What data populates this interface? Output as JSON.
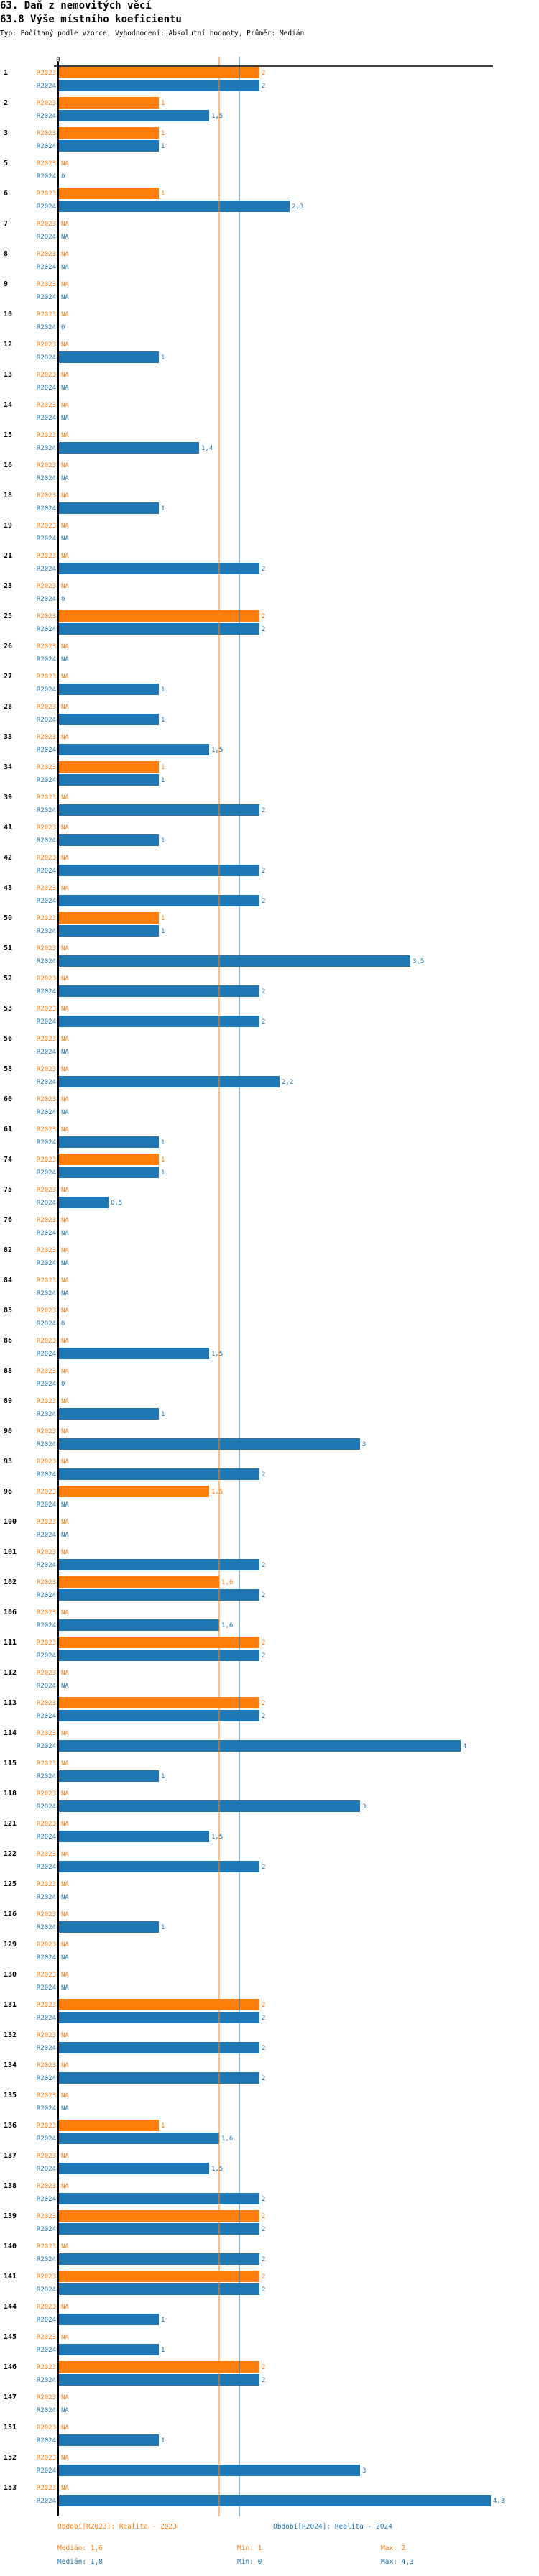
{
  "header": {
    "title": "63. Daň z nemovitých věcí",
    "subtitle": "63.8 Výše místního koeficientu",
    "description": "Typ: Počítaný podle vzorce, Vyhodnocení: Absolutní hodnoty, Průměr: Medián"
  },
  "colors": {
    "r2023": "#ff7f0e",
    "r2024": "#1f77b4",
    "axis": "#000000"
  },
  "chart_data": {
    "type": "bar",
    "orientation": "horizontal",
    "title": "63.8 Výše místního koeficientu",
    "axis_tick_label": "0",
    "xlim": [
      0,
      4.3
    ],
    "series_names": [
      "R2023",
      "R2024"
    ],
    "na_label": "NA",
    "categories": [
      "1",
      "2",
      "3",
      "5",
      "6",
      "7",
      "8",
      "9",
      "10",
      "12",
      "13",
      "14",
      "15",
      "16",
      "18",
      "19",
      "21",
      "23",
      "25",
      "26",
      "27",
      "28",
      "33",
      "34",
      "39",
      "41",
      "42",
      "43",
      "50",
      "51",
      "52",
      "53",
      "56",
      "58",
      "60",
      "61",
      "74",
      "75",
      "76",
      "82",
      "84",
      "85",
      "86",
      "88",
      "89",
      "90",
      "93",
      "96",
      "100",
      "101",
      "102",
      "106",
      "111",
      "112",
      "113",
      "114",
      "115",
      "118",
      "121",
      "122",
      "125",
      "126",
      "129",
      "130",
      "131",
      "132",
      "134",
      "135",
      "136",
      "137",
      "138",
      "139",
      "140",
      "141",
      "144",
      "145",
      "146",
      "147",
      "151",
      "152",
      "153"
    ],
    "series": [
      {
        "name": "R2023",
        "values": [
          2,
          1,
          1,
          null,
          1,
          null,
          null,
          null,
          null,
          null,
          null,
          null,
          null,
          null,
          null,
          null,
          null,
          null,
          2,
          null,
          null,
          null,
          null,
          1,
          null,
          null,
          null,
          null,
          1,
          null,
          null,
          null,
          null,
          null,
          null,
          null,
          1,
          null,
          null,
          null,
          null,
          null,
          null,
          null,
          null,
          null,
          null,
          1.5,
          null,
          null,
          1.6,
          null,
          2,
          null,
          2,
          null,
          null,
          null,
          null,
          null,
          null,
          null,
          null,
          null,
          2,
          null,
          null,
          null,
          1,
          null,
          null,
          2,
          null,
          2,
          null,
          null,
          2,
          null,
          null,
          null,
          null
        ],
        "labels": [
          "2",
          "1",
          "1",
          "NA",
          "1",
          "NA",
          "NA",
          "NA",
          "NA",
          "NA",
          "NA",
          "NA",
          "NA",
          "NA",
          "NA",
          "NA",
          "NA",
          "NA",
          "2",
          "NA",
          "NA",
          "NA",
          "NA",
          "1",
          "NA",
          "NA",
          "NA",
          "NA",
          "1",
          "NA",
          "NA",
          "NA",
          "NA",
          "NA",
          "NA",
          "NA",
          "1",
          "NA",
          "NA",
          "NA",
          "NA",
          "NA",
          "NA",
          "NA",
          "NA",
          "NA",
          "NA",
          "1,5",
          "NA",
          "NA",
          "1,6",
          "NA",
          "2",
          "NA",
          "2",
          "NA",
          "NA",
          "NA",
          "NA",
          "NA",
          "NA",
          "NA",
          "NA",
          "NA",
          "2",
          "NA",
          "NA",
          "NA",
          "1",
          "NA",
          "NA",
          "2",
          "NA",
          "2",
          "NA",
          "NA",
          "2",
          "NA",
          "NA",
          "NA",
          "NA"
        ]
      },
      {
        "name": "R2024",
        "values": [
          2,
          1.5,
          1,
          0,
          2.3,
          null,
          null,
          null,
          0,
          1,
          null,
          null,
          1.4,
          null,
          1,
          null,
          2,
          0,
          2,
          null,
          1,
          1,
          1.5,
          1,
          2,
          1,
          2,
          2,
          1,
          3.5,
          2,
          2,
          null,
          2.2,
          null,
          1,
          1,
          0.5,
          null,
          null,
          null,
          0,
          1.5,
          0,
          1,
          3,
          2,
          null,
          null,
          2,
          2,
          1.6,
          2,
          null,
          2,
          4,
          1,
          3,
          1.5,
          2,
          null,
          1,
          null,
          null,
          2,
          2,
          2,
          null,
          1.6,
          1.5,
          2,
          2,
          2,
          2,
          1,
          1,
          2,
          null,
          1,
          3,
          4.3
        ],
        "labels": [
          "2",
          "1,5",
          "1",
          "0",
          "2,3",
          "NA",
          "NA",
          "NA",
          "0",
          "1",
          "NA",
          "NA",
          "1,4",
          "NA",
          "1",
          "NA",
          "2",
          "0",
          "2",
          "NA",
          "1",
          "1",
          "1,5",
          "1",
          "2",
          "1",
          "2",
          "2",
          "1",
          "3,5",
          "2",
          "2",
          "NA",
          "2,2",
          "NA",
          "1",
          "1",
          "0,5",
          "NA",
          "NA",
          "NA",
          "0",
          "1,5",
          "0",
          "1",
          "3",
          "2",
          "NA",
          "NA",
          "2",
          "2",
          "1,6",
          "2",
          "NA",
          "2",
          "4",
          "1",
          "3",
          "1,5",
          "2",
          "NA",
          "1",
          "NA",
          "NA",
          "2",
          "2",
          "2",
          "NA",
          "1,6",
          "1,5",
          "2",
          "2",
          "2",
          "2",
          "1",
          "1",
          "2",
          "NA",
          "1",
          "3",
          "4,3"
        ]
      }
    ],
    "reference_lines": [
      {
        "series": "R2023",
        "type": "median",
        "value": 1.6
      },
      {
        "series": "R2024",
        "type": "median",
        "value": 1.8
      }
    ]
  },
  "legend": {
    "r2023": "Období[R2023]: Realita - 2023",
    "r2024": "Období[R2024]: Realita - 2024"
  },
  "stats": {
    "r2023": {
      "median": "Medián: 1,6",
      "min": "Min: 1",
      "max": "Max: 2"
    },
    "r2024": {
      "median": "Medián: 1,8",
      "min": "Min: 0",
      "max": "Max: 4,3"
    }
  }
}
